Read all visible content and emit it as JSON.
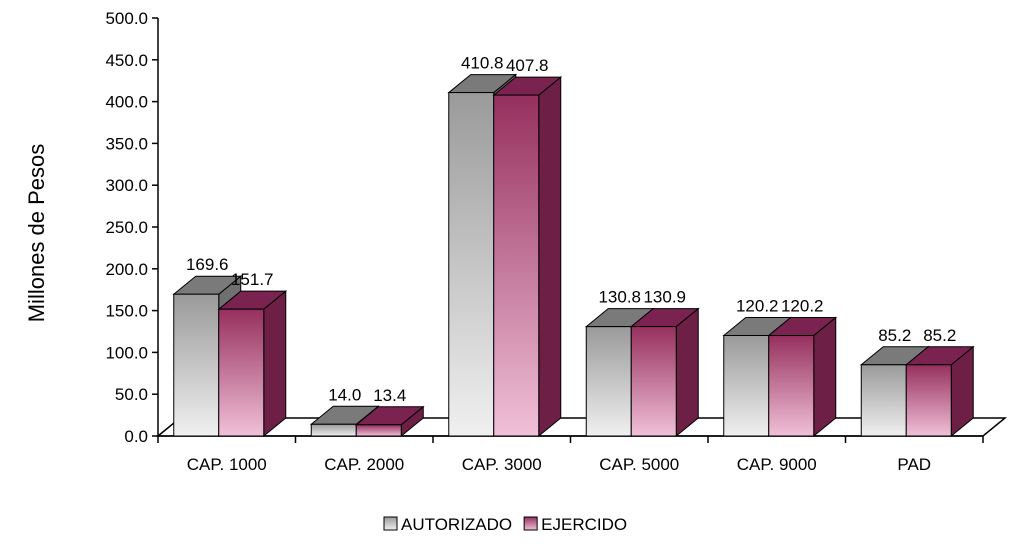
{
  "chart_data": {
    "type": "bar",
    "title": "",
    "xlabel": "",
    "ylabel": "Millones de Pesos",
    "ylim": [
      0,
      500
    ],
    "y_ticks": [
      "0.0",
      "50.0",
      "100.0",
      "150.0",
      "200.0",
      "250.0",
      "300.0",
      "350.0",
      "400.0",
      "450.0",
      "500.0"
    ],
    "categories": [
      "CAP. 1000",
      "CAP. 2000",
      "CAP. 3000",
      "CAP. 5000",
      "CAP. 9000",
      "PAD"
    ],
    "series": [
      {
        "name": "AUTORIZADO",
        "values": [
          169.6,
          14.0,
          410.8,
          130.8,
          120.2,
          85.2
        ],
        "labels": [
          "169.6",
          "14.0",
          "410.8",
          "130.8",
          "120.2",
          "85.2"
        ],
        "color_top": "#9a9a9a",
        "color_bottom": "#f0f0f0",
        "color_side": "#707070",
        "color_cap": "#7a7a7a"
      },
      {
        "name": "EJERCIDO",
        "values": [
          151.7,
          13.4,
          407.8,
          130.9,
          120.2,
          85.2
        ],
        "labels": [
          "151.7",
          "13.4",
          "407.8",
          "130.9",
          "120.2",
          "85.2"
        ],
        "color_top": "#96305e",
        "color_bottom": "#f0c0d8",
        "color_side": "#6e1f45",
        "color_cap": "#7a2350"
      }
    ],
    "grid": false,
    "legend_position": "bottom",
    "three_d": true
  }
}
